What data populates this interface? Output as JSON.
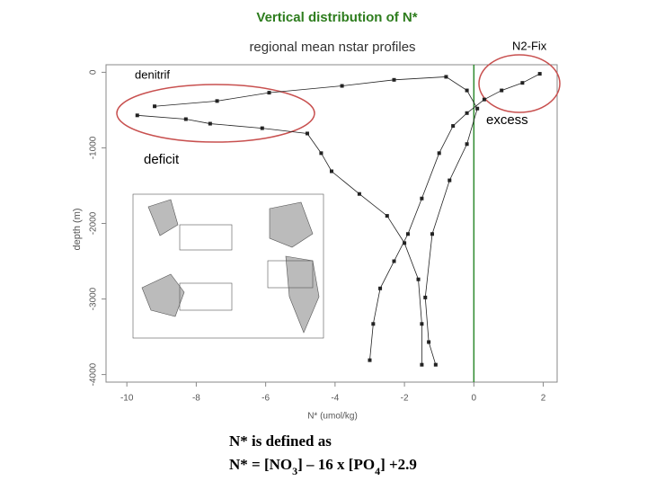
{
  "chart_data": {
    "type": "line",
    "title": "Vertical distribution of N*",
    "subtitle": "regional mean nstar profiles",
    "x_label": "N* (umol/kg)",
    "y_label": "depth (m)",
    "xlim": [
      -10.6,
      2.4
    ],
    "xticks": [
      -10,
      -8,
      -6,
      -4,
      -2,
      0,
      2
    ],
    "ylim": [
      100,
      -4100
    ],
    "yticks": [
      0,
      -1000,
      -2000,
      -3000,
      -4000
    ],
    "color": "#222222",
    "reference_color": "#2e8b2e",
    "series": [
      {
        "x": [
          -9.7,
          -8.3,
          -7.6,
          -6.1,
          -4.8,
          -4.4,
          -4.1,
          -3.3,
          -2.5,
          -2.0,
          -1.6,
          -1.5,
          -1.5
        ],
        "values": [
          -570,
          -620,
          -680,
          -740,
          -810,
          -1070,
          -1310,
          -1610,
          -1900,
          -2260,
          -2740,
          -3330,
          -3870
        ]
      },
      {
        "x": [
          -9.2,
          -7.4,
          -5.9,
          -3.8,
          -2.3,
          -0.8,
          -0.2,
          0.1,
          -0.2,
          -0.7,
          -1.2,
          -1.4,
          -1.3,
          -1.1
        ],
        "values": [
          -450,
          -380,
          -270,
          -180,
          -100,
          -60,
          -240,
          -480,
          -950,
          -1430,
          -2140,
          -2980,
          -3570,
          -3870
        ]
      },
      {
        "x": [
          1.9,
          1.4,
          0.8,
          0.3,
          -0.2,
          -0.6,
          -1.0,
          -1.5,
          -1.9,
          -2.3,
          -2.7,
          -2.9,
          -3.0
        ],
        "values": [
          -20,
          -140,
          -240,
          -360,
          -540,
          -710,
          -1070,
          -1670,
          -2140,
          -2500,
          -2860,
          -3330,
          -3810
        ]
      }
    ],
    "annotations": {
      "denitrif": "denitrif",
      "deficit": "deficit",
      "n2fix": "N2-Fix",
      "excess": "excess"
    }
  },
  "definition": {
    "line1": "N* is defined as",
    "line2_parts": [
      "N* = [NO",
      "3",
      "] – 16 x [PO",
      "4",
      "] +2.9"
    ]
  }
}
